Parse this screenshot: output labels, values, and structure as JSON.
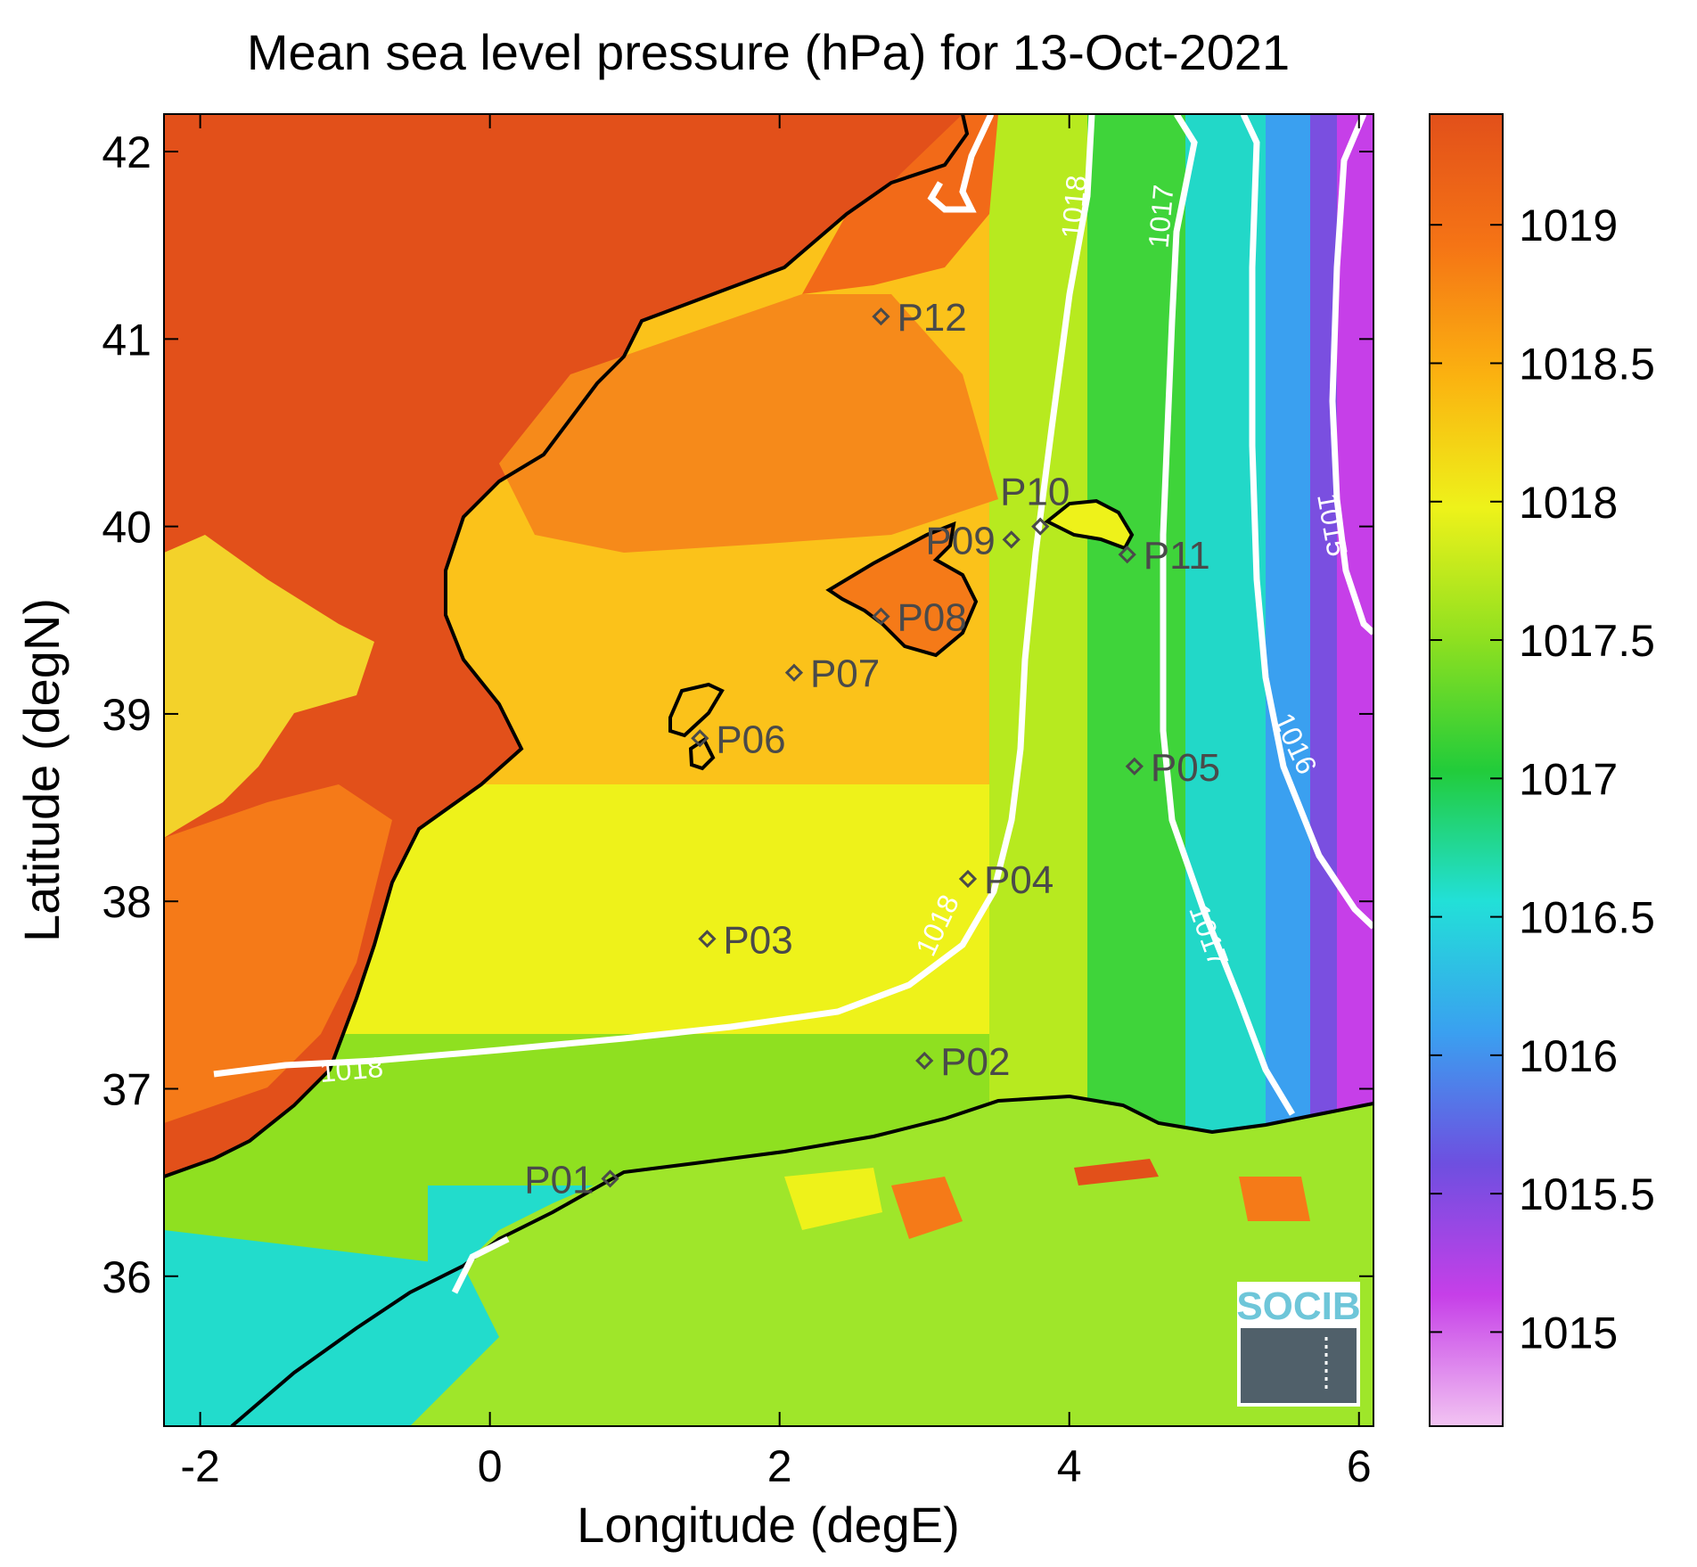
{
  "title": "Mean sea level pressure (hPa) for 13-Oct-2021",
  "xlabel": "Longitude (degE)",
  "ylabel": "Latitude (degN)",
  "logo_text": "SOCIB",
  "x_ticks": [
    {
      "value": -2,
      "label": "-2"
    },
    {
      "value": 0,
      "label": "0"
    },
    {
      "value": 2,
      "label": "2"
    },
    {
      "value": 4,
      "label": "4"
    },
    {
      "value": 6,
      "label": "6"
    }
  ],
  "y_ticks": [
    {
      "value": 36,
      "label": "36"
    },
    {
      "value": 37,
      "label": "37"
    },
    {
      "value": 38,
      "label": "38"
    },
    {
      "value": 39,
      "label": "39"
    },
    {
      "value": 40,
      "label": "40"
    },
    {
      "value": 41,
      "label": "41"
    },
    {
      "value": 42,
      "label": "42"
    }
  ],
  "colorbar": {
    "range": [
      1014.66,
      1019.4
    ],
    "ticks": [
      {
        "value": 1015,
        "label": "1015"
      },
      {
        "value": 1015.5,
        "label": "1015.5"
      },
      {
        "value": 1016,
        "label": "1016"
      },
      {
        "value": 1016.5,
        "label": "1016.5"
      },
      {
        "value": 1017,
        "label": "1017"
      },
      {
        "value": 1017.5,
        "label": "1017.5"
      },
      {
        "value": 1018,
        "label": "1018"
      },
      {
        "value": 1018.5,
        "label": "1018.5"
      },
      {
        "value": 1019,
        "label": "1019"
      }
    ],
    "colors": [
      "#f2c4f2",
      "#c63fe8",
      "#6e4fe0",
      "#3aa0f0",
      "#22e0d8",
      "#22cc3a",
      "#8fe020",
      "#eef21a",
      "#fbb210",
      "#f57415",
      "#e2501a"
    ]
  },
  "stations": [
    {
      "id": "P01",
      "lon": 0.83,
      "lat": 36.52
    },
    {
      "id": "P02",
      "lon": 3.0,
      "lat": 37.15
    },
    {
      "id": "P03",
      "lon": 1.5,
      "lat": 37.8
    },
    {
      "id": "P04",
      "lon": 3.3,
      "lat": 38.12
    },
    {
      "id": "P05",
      "lon": 4.45,
      "lat": 38.72
    },
    {
      "id": "P06",
      "lon": 1.45,
      "lat": 38.87
    },
    {
      "id": "P07",
      "lon": 2.1,
      "lat": 39.22
    },
    {
      "id": "P08",
      "lon": 2.7,
      "lat": 39.52
    },
    {
      "id": "P09",
      "lon": 3.6,
      "lat": 39.93
    },
    {
      "id": "P10",
      "lon": 3.8,
      "lat": 40.0
    },
    {
      "id": "P11",
      "lon": 4.4,
      "lat": 39.85
    },
    {
      "id": "P12",
      "lon": 2.7,
      "lat": 41.12
    }
  ],
  "contour_labels": [
    {
      "text": "1018",
      "lon": -0.95,
      "lat": 37.05,
      "angle": -5
    },
    {
      "text": "1018",
      "lon": 3.15,
      "lat": 37.85,
      "angle": -65
    },
    {
      "text": "1018",
      "lon": 4.1,
      "lat": 41.7,
      "angle": -85
    },
    {
      "text": "1017",
      "lon": 4.7,
      "lat": 41.65,
      "angle": -85
    },
    {
      "text": "1017",
      "lon": 4.9,
      "lat": 37.8,
      "angle": 70
    },
    {
      "text": "1016",
      "lon": 5.5,
      "lat": 38.82,
      "angle": 65
    },
    {
      "text": "1015",
      "lon": 5.75,
      "lat": 40.0,
      "angle": 80
    }
  ]
}
